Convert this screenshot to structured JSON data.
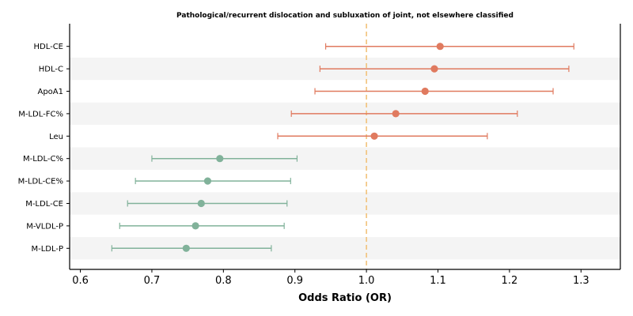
{
  "chart_data": {
    "type": "forest",
    "title": "Pathological/recurrent dislocation and subluxation of joint, not elsewhere classified",
    "xlabel": "Odds Ratio (OR)",
    "xlim": [
      0.585,
      1.355
    ],
    "xticks": [
      0.6,
      0.7,
      0.8,
      0.9,
      1.0,
      1.1,
      1.2,
      1.3
    ],
    "xtick_labels": [
      "0.6",
      "0.7",
      "0.8",
      "0.9",
      "1.0",
      "1.1",
      "1.2",
      "1.3"
    ],
    "reference_line": 1.0,
    "rows": [
      {
        "label": "HDL-CE",
        "or": 1.103,
        "lower": 0.943,
        "upper": 1.29
      },
      {
        "label": "HDL-C",
        "or": 1.095,
        "lower": 0.935,
        "upper": 1.283
      },
      {
        "label": "ApoA1",
        "or": 1.082,
        "lower": 0.928,
        "upper": 1.261
      },
      {
        "label": "M-LDL-FC%",
        "or": 1.041,
        "lower": 0.895,
        "upper": 1.211
      },
      {
        "label": "Leu",
        "or": 1.011,
        "lower": 0.876,
        "upper": 1.169
      },
      {
        "label": "M-LDL-C%",
        "or": 0.795,
        "lower": 0.7,
        "upper": 0.903
      },
      {
        "label": "M-LDL-CE%",
        "or": 0.778,
        "lower": 0.677,
        "upper": 0.894
      },
      {
        "label": "M-LDL-CE",
        "or": 0.769,
        "lower": 0.666,
        "upper": 0.889
      },
      {
        "label": "M-VLDL-P",
        "or": 0.761,
        "lower": 0.655,
        "upper": 0.885
      },
      {
        "label": "M-LDL-P",
        "or": 0.748,
        "lower": 0.644,
        "upper": 0.867
      }
    ],
    "colors": {
      "above_reference": "#e07a5f",
      "below_reference": "#81b29a",
      "reference_line": "#f2c27a",
      "band": "#f4f4f4"
    },
    "grid": false
  }
}
